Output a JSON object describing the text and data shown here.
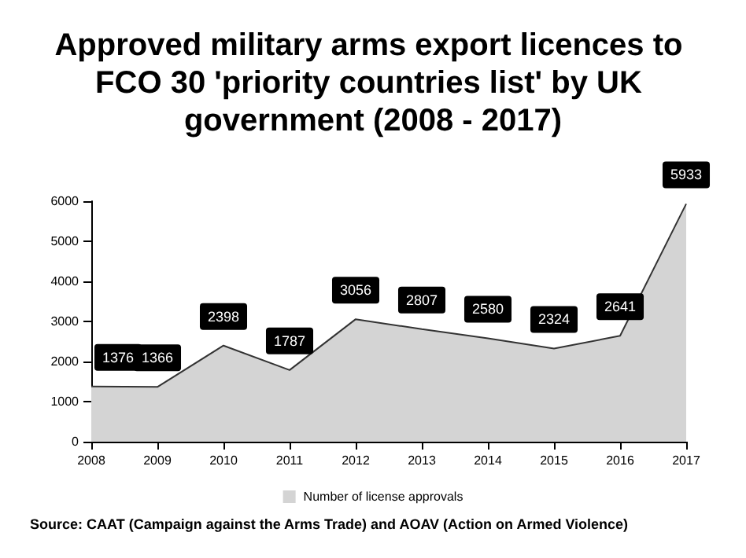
{
  "chart_data": {
    "type": "area",
    "title": "Approved military arms export licences to FCO 30 'priority countries list' by UK government (2008 - 2017)",
    "categories": [
      "2008",
      "2009",
      "2010",
      "2011",
      "2012",
      "2013",
      "2014",
      "2015",
      "2016",
      "2017"
    ],
    "series": [
      {
        "name": "Number of license approvals",
        "color": "#d4d4d4",
        "values": [
          1376,
          1366,
          2398,
          1787,
          3056,
          2807,
          2580,
          2324,
          2641,
          5933
        ]
      }
    ],
    "ylim": [
      0,
      6000
    ],
    "yticks": [
      0,
      1000,
      2000,
      3000,
      4000,
      5000,
      6000
    ],
    "grid": false,
    "legend": "bottom",
    "data_labels": true,
    "annotations": [
      "Source: CAAT (Campaign against the Arms Trade) and AOAV (Action on Armed Violence)"
    ]
  }
}
